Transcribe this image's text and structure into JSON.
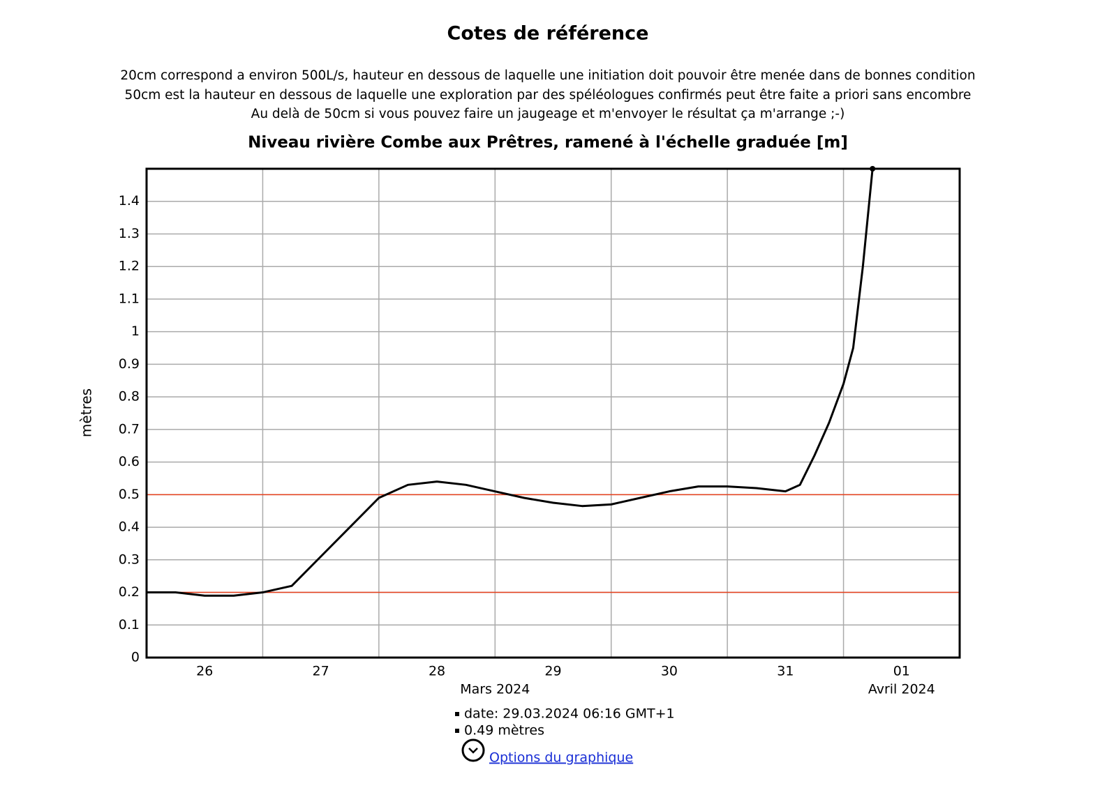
{
  "header": {
    "title": "Cotes de référence",
    "lines": [
      "20cm correspond a environ 500L/s, hauteur en dessous de laquelle une initiation doit pouvoir être menée dans de bonnes condition",
      "50cm est la hauteur en dessous de laquelle une exploration par des spéléologues confirmés peut être faite a priori sans encombre",
      "Au delà de 50cm si vous pouvez faire un jaugeage et m'envoyer le résultat ça m'arrange ;-)"
    ]
  },
  "chart_data": {
    "type": "line",
    "title": "Niveau rivière Combe aux Prêtres, ramené à l'échelle graduée [m]",
    "ylabel": "mètres",
    "color": "#000000",
    "x": [
      "2024-03-25T12:00",
      "2024-03-25T18:00",
      "2024-03-26T00:00",
      "2024-03-26T06:00",
      "2024-03-26T12:00",
      "2024-03-26T18:00",
      "2024-03-27T00:00",
      "2024-03-27T06:00",
      "2024-03-27T12:00",
      "2024-03-27T18:00",
      "2024-03-28T00:00",
      "2024-03-28T06:00",
      "2024-03-28T12:00",
      "2024-03-28T18:00",
      "2024-03-29T00:00",
      "2024-03-29T06:00",
      "2024-03-29T12:00",
      "2024-03-29T18:00",
      "2024-03-30T00:00",
      "2024-03-30T06:00",
      "2024-03-30T12:00",
      "2024-03-30T18:00",
      "2024-03-31T00:00",
      "2024-03-31T03:00",
      "2024-03-31T06:00",
      "2024-03-31T09:00",
      "2024-03-31T12:00",
      "2024-03-31T14:00",
      "2024-03-31T16:00",
      "2024-03-31T18:00"
    ],
    "values": [
      0.2,
      0.2,
      0.19,
      0.19,
      0.2,
      0.22,
      0.31,
      0.4,
      0.49,
      0.53,
      0.54,
      0.53,
      0.51,
      0.49,
      0.475,
      0.465,
      0.47,
      0.49,
      0.51,
      0.525,
      0.525,
      0.52,
      0.51,
      0.53,
      0.62,
      0.72,
      0.84,
      0.95,
      1.2,
      1.5
    ],
    "xlim": [
      "2024-03-25T12:00",
      "2024-04-01T12:00"
    ],
    "xticks": [
      {
        "value": "2024-03-26T00:00",
        "label": "26"
      },
      {
        "value": "2024-03-27T00:00",
        "label": "27"
      },
      {
        "value": "2024-03-28T00:00",
        "label": "28"
      },
      {
        "value": "2024-03-29T00:00",
        "label": "29"
      },
      {
        "value": "2024-03-30T00:00",
        "label": "30"
      },
      {
        "value": "2024-03-31T00:00",
        "label": "31"
      },
      {
        "value": "2024-04-01T00:00",
        "label": "01"
      }
    ],
    "x_group_labels": [
      {
        "value": "2024-03-28T12:00",
        "label": "Mars 2024"
      },
      {
        "value": "2024-04-01T00:00",
        "label": "Avril 2024"
      }
    ],
    "xgrid": [
      "2024-03-26T12:00",
      "2024-03-27T12:00",
      "2024-03-28T12:00",
      "2024-03-29T12:00",
      "2024-03-30T12:00",
      "2024-03-31T12:00"
    ],
    "ylim": [
      0,
      1.5
    ],
    "yticks": [
      0,
      0.1,
      0.2,
      0.3,
      0.4,
      0.5,
      0.6,
      0.7,
      0.8,
      0.9,
      1,
      1.1,
      1.2,
      1.3,
      1.4
    ],
    "grid": true,
    "reference_lines": [
      0.2,
      0.5
    ],
    "reference_color": "#e8401c"
  },
  "tooltip": [
    "date: 29.03.2024 06:16 GMT+1",
    "0.49 mètres"
  ],
  "link": "Options du graphique"
}
